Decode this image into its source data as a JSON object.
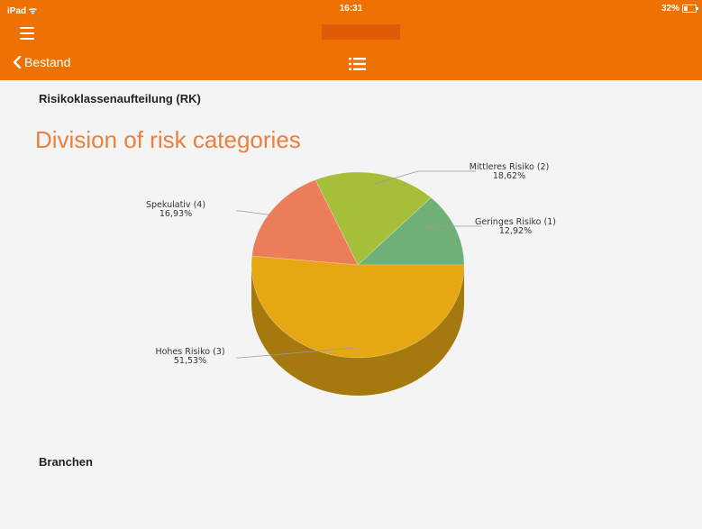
{
  "status_bar": {
    "device": "iPad",
    "time": "16:31",
    "battery": "32%"
  },
  "nav": {
    "back_label": "Bestand"
  },
  "colors": {
    "header": "#ed7203",
    "title_accent": "#ed7f3c"
  },
  "sections": {
    "risk_heading": "Risikoklassenaufteilung (RK)",
    "industries_heading": "Branchen"
  },
  "chart_data": {
    "type": "pie",
    "title": "Division of risk categories",
    "slices": [
      {
        "label": "Geringes Risiko (1)",
        "percent_label": "12,92%",
        "value": 12.92,
        "color": "#6fb077"
      },
      {
        "label": "Mittleres Risiko (2)",
        "percent_label": "18,62%",
        "value": 18.62,
        "color": "#a5bf3a"
      },
      {
        "label": "Spekulativ (4)",
        "percent_label": "16,93%",
        "value": 16.93,
        "color": "#ec7d5b"
      },
      {
        "label": "Hohes Risiko (3)",
        "percent_label": "51,53%",
        "value": 51.53,
        "color": "#e5a813"
      }
    ]
  }
}
